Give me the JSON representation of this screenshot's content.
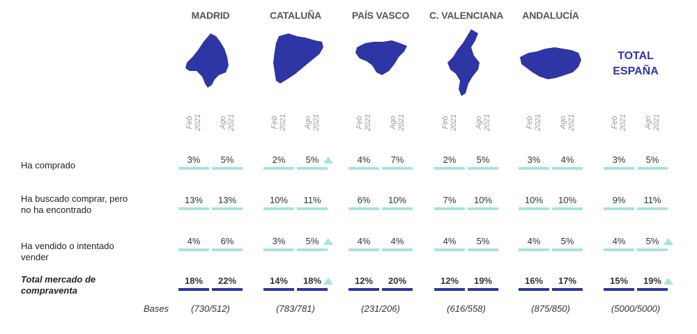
{
  "colors": {
    "map_fill": "#2e35a5",
    "bar": "#a8e2e2",
    "total_bar": "#2e35a5",
    "total_title": "#2e35a5",
    "up_marker": "#a8e2e2"
  },
  "periods": [
    "Feb\n2021",
    "Ago\n2021"
  ],
  "regions": [
    {
      "name": "MADRID",
      "base": "(730/512)",
      "map_icon": "madrid-map"
    },
    {
      "name": "CATALUÑA",
      "base": "(783/781)",
      "map_icon": "cataluna-map"
    },
    {
      "name": "PAÍS VASCO",
      "base": "(231/206)",
      "map_icon": "pais-vasco-map"
    },
    {
      "name": "C. VALENCIANA",
      "base": "(616/558)",
      "map_icon": "valenciana-map"
    },
    {
      "name": "ANDALUCÍA",
      "base": "(875/850)",
      "map_icon": "andalucia-map"
    },
    {
      "name": "TOTAL\nESPAÑA",
      "base": "(5000/5000)",
      "map_icon": ""
    }
  ],
  "bases_label": "Bases",
  "chart_data": {
    "type": "table",
    "columns": [
      "MADRID",
      "CATALUÑA",
      "PAÍS VASCO",
      "C. VALENCIANA",
      "ANDALUCÍA",
      "TOTAL ESPAÑA"
    ],
    "periods": [
      "Feb 2021",
      "Ago 2021"
    ],
    "rows": [
      {
        "label": "Ha comprado",
        "is_total": false,
        "values": [
          [
            "3%",
            "5%"
          ],
          [
            "2%",
            "5%"
          ],
          [
            "4%",
            "7%"
          ],
          [
            "2%",
            "5%"
          ],
          [
            "3%",
            "4%"
          ],
          [
            "3%",
            "5%"
          ]
        ],
        "up_markers": [
          false,
          true,
          false,
          false,
          false,
          false
        ]
      },
      {
        "label": "Ha buscado comprar, pero\nno ha encontrado",
        "is_total": false,
        "values": [
          [
            "13%",
            "13%"
          ],
          [
            "10%",
            "11%"
          ],
          [
            "6%",
            "10%"
          ],
          [
            "7%",
            "10%"
          ],
          [
            "10%",
            "10%"
          ],
          [
            "9%",
            "11%"
          ]
        ],
        "up_markers": [
          false,
          false,
          false,
          false,
          false,
          false
        ]
      },
      {
        "label": "Ha vendido o intentado\nvender",
        "is_total": false,
        "values": [
          [
            "4%",
            "6%"
          ],
          [
            "3%",
            "5%"
          ],
          [
            "4%",
            "4%"
          ],
          [
            "4%",
            "5%"
          ],
          [
            "4%",
            "5%"
          ],
          [
            "4%",
            "5%"
          ]
        ],
        "up_markers": [
          false,
          true,
          false,
          false,
          false,
          true
        ]
      },
      {
        "label": "Total mercado de\ncompraventa",
        "is_total": true,
        "values": [
          [
            "18%",
            "22%"
          ],
          [
            "14%",
            "18%"
          ],
          [
            "12%",
            "20%"
          ],
          [
            "12%",
            "19%"
          ],
          [
            "16%",
            "17%"
          ],
          [
            "15%",
            "19%"
          ]
        ],
        "up_markers": [
          false,
          true,
          false,
          false,
          false,
          true
        ]
      }
    ]
  }
}
